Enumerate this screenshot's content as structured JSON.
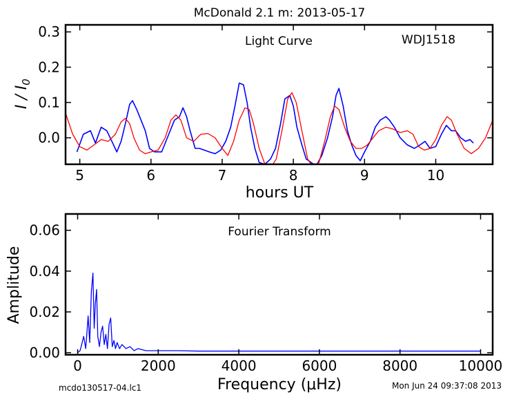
{
  "figure": {
    "title": "McDonald 2.1 m:  2013-05-17",
    "footer_left": "mcdo130517-04.lc1",
    "footer_right": "Mon Jun 24 09:37:08 2013"
  },
  "chart_data": [
    {
      "type": "line",
      "title": "McDonald 2.1 m:  2013-05-17",
      "xlabel": "hours UT",
      "ylabel": "I/I0",
      "xlim": [
        4.8,
        10.8
      ],
      "ylim": [
        -0.075,
        0.32
      ],
      "xticks": [
        5,
        6,
        7,
        8,
        9,
        10
      ],
      "yticks": [
        0.0,
        0.1,
        0.2,
        0.3
      ],
      "xtick_labels": [
        "5",
        "6",
        "7",
        "8",
        "9",
        "10"
      ],
      "ytick_labels": [
        "0.0",
        "0.1",
        "0.2",
        "0.3"
      ],
      "annotations": [
        "Light Curve",
        "WDJ1518"
      ],
      "series": [
        {
          "color": "#0000ff",
          "style": "noisy data",
          "x": [
            4.96,
            5.05,
            5.15,
            5.22,
            5.3,
            5.38,
            5.45,
            5.52,
            5.58,
            5.64,
            5.7,
            5.74,
            5.8,
            5.86,
            5.92,
            5.98,
            6.05,
            6.15,
            6.25,
            6.33,
            6.4,
            6.45,
            6.5,
            6.55,
            6.62,
            6.68,
            6.75,
            6.82,
            6.9,
            6.98,
            7.05,
            7.12,
            7.18,
            7.24,
            7.3,
            7.35,
            7.4,
            7.46,
            7.52,
            7.6,
            7.68,
            7.75,
            7.82,
            7.88,
            7.95,
            8.0,
            8.05,
            8.12,
            8.18,
            8.25,
            8.32,
            8.4,
            8.48,
            8.55,
            8.6,
            8.64,
            8.7,
            8.76,
            8.82,
            8.88,
            8.94,
            9.0,
            9.08,
            9.15,
            9.22,
            9.3,
            9.35,
            9.42,
            9.5,
            9.6,
            9.7,
            9.78,
            9.85,
            9.92,
            10.0,
            10.08,
            10.15,
            10.22,
            10.28,
            10.35,
            10.42,
            10.48,
            10.53
          ],
          "y": [
            -0.04,
            0.01,
            0.02,
            -0.015,
            0.03,
            0.02,
            -0.01,
            -0.04,
            -0.01,
            0.04,
            0.095,
            0.105,
            0.08,
            0.05,
            0.02,
            -0.03,
            -0.04,
            -0.04,
            0.01,
            0.05,
            0.06,
            0.085,
            0.06,
            0.02,
            -0.03,
            -0.03,
            -0.035,
            -0.04,
            -0.045,
            -0.035,
            -0.01,
            0.03,
            0.09,
            0.155,
            0.15,
            0.1,
            0.03,
            -0.03,
            -0.07,
            -0.075,
            -0.06,
            -0.03,
            0.04,
            0.11,
            0.12,
            0.09,
            0.03,
            -0.02,
            -0.06,
            -0.07,
            -0.08,
            -0.05,
            0.0,
            0.06,
            0.12,
            0.14,
            0.09,
            0.02,
            -0.02,
            -0.05,
            -0.065,
            -0.04,
            -0.01,
            0.03,
            0.05,
            0.06,
            0.05,
            0.03,
            0.0,
            -0.02,
            -0.03,
            -0.02,
            -0.01,
            -0.03,
            -0.025,
            0.01,
            0.035,
            0.02,
            0.02,
            0.0,
            -0.01,
            -0.005,
            -0.015
          ]
        },
        {
          "color": "#ff0000",
          "style": "smooth model fit",
          "x": [
            4.8,
            4.9,
            5.0,
            5.1,
            5.2,
            5.3,
            5.4,
            5.5,
            5.58,
            5.64,
            5.7,
            5.76,
            5.84,
            5.92,
            6.0,
            6.1,
            6.2,
            6.28,
            6.35,
            6.42,
            6.5,
            6.6,
            6.7,
            6.8,
            6.9,
            7.0,
            7.08,
            7.16,
            7.24,
            7.32,
            7.38,
            7.44,
            7.52,
            7.6,
            7.68,
            7.76,
            7.84,
            7.92,
            7.98,
            8.04,
            8.12,
            8.2,
            8.28,
            8.36,
            8.44,
            8.52,
            8.58,
            8.64,
            8.72,
            8.8,
            8.88,
            8.96,
            9.04,
            9.12,
            9.2,
            9.3,
            9.4,
            9.5,
            9.6,
            9.68,
            9.76,
            9.84,
            9.92,
            10.0,
            10.08,
            10.16,
            10.22,
            10.3,
            10.4,
            10.5,
            10.6,
            10.7,
            10.8
          ],
          "y": [
            0.07,
            0.01,
            -0.025,
            -0.035,
            -0.02,
            -0.005,
            -0.01,
            0.01,
            0.045,
            0.055,
            0.04,
            0.0,
            -0.035,
            -0.045,
            -0.04,
            -0.035,
            0.0,
            0.05,
            0.065,
            0.05,
            0.0,
            -0.01,
            0.01,
            0.012,
            0.0,
            -0.03,
            -0.05,
            -0.01,
            0.05,
            0.085,
            0.08,
            0.04,
            -0.03,
            -0.075,
            -0.085,
            -0.06,
            0.02,
            0.11,
            0.128,
            0.1,
            0.02,
            -0.06,
            -0.085,
            -0.07,
            -0.01,
            0.06,
            0.09,
            0.08,
            0.03,
            -0.01,
            -0.03,
            -0.03,
            -0.02,
            0.0,
            0.02,
            0.03,
            0.025,
            0.015,
            0.02,
            0.01,
            -0.025,
            -0.035,
            -0.03,
            -0.005,
            0.035,
            0.06,
            0.05,
            0.01,
            -0.03,
            -0.045,
            -0.03,
            0.0,
            0.05
          ]
        }
      ]
    },
    {
      "type": "line",
      "title": "Fourier Transform",
      "xlabel": "Frequency (μHz)",
      "ylabel": "Amplitude",
      "xlim": [
        -300,
        10300
      ],
      "ylim": [
        -0.001,
        0.068
      ],
      "xticks": [
        0,
        2000,
        4000,
        6000,
        8000,
        10000
      ],
      "yticks": [
        0.0,
        0.02,
        0.04,
        0.06
      ],
      "xtick_labels": [
        "0",
        "2000",
        "4000",
        "6000",
        "8000",
        "10000"
      ],
      "ytick_labels": [
        "0.00",
        "0.02",
        "0.04",
        "0.06"
      ],
      "annotations": [
        "Fourier Transform"
      ],
      "series": [
        {
          "color": "#0000ff",
          "x": [
            0,
            60,
            100,
            150,
            200,
            230,
            260,
            300,
            340,
            380,
            410,
            440,
            470,
            500,
            540,
            580,
            620,
            660,
            700,
            740,
            780,
            820,
            860,
            900,
            940,
            980,
            1040,
            1100,
            1200,
            1300,
            1400,
            1500,
            1700,
            2000,
            2500,
            3000,
            4000,
            5000,
            6000,
            7000,
            8000,
            9000,
            10000
          ],
          "y": [
            0.0,
            0.001,
            0.004,
            0.008,
            0.002,
            0.01,
            0.018,
            0.005,
            0.03,
            0.039,
            0.012,
            0.024,
            0.031,
            0.008,
            0.003,
            0.01,
            0.013,
            0.004,
            0.009,
            0.002,
            0.014,
            0.017,
            0.003,
            0.006,
            0.002,
            0.005,
            0.002,
            0.004,
            0.002,
            0.003,
            0.001,
            0.002,
            0.001,
            0.001,
            0.001,
            0.0008,
            0.0008,
            0.0008,
            0.0008,
            0.0008,
            0.0008,
            0.0008,
            0.0008
          ]
        }
      ]
    }
  ]
}
